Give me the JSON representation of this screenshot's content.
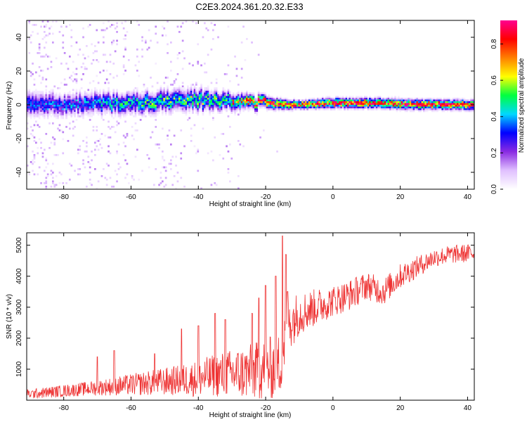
{
  "title": "C2E3.2024.361.20.32.E33",
  "chart_data": [
    {
      "type": "heatmap",
      "xlabel": "Height of straight line (km)",
      "ylabel": "Frequency (Hz)",
      "xlim": [
        -91,
        42
      ],
      "ylim": [
        -50,
        50
      ],
      "xticks": [
        -80,
        -60,
        -40,
        -20,
        0,
        20,
        40
      ],
      "yticks": [
        -40,
        -20,
        0,
        20,
        40
      ],
      "colorbar": {
        "label": "Normalized spectral amplitude",
        "range": [
          0.0,
          0.93
        ],
        "ticks": [
          0.0,
          0.2,
          0.4,
          0.6,
          0.8
        ],
        "colors": [
          "#ffffff",
          "#e0c0ff",
          "#8a2be2",
          "#0000ff",
          "#00d8ff",
          "#00ff40",
          "#ffff00",
          "#ff8000",
          "#ff0000",
          "#ff0090"
        ]
      },
      "band_profile": [
        {
          "x": -90,
          "center": 0,
          "halfwidth": 6,
          "peak": 0.35
        },
        {
          "x": -80,
          "center": 0,
          "halfwidth": 5,
          "peak": 0.35
        },
        {
          "x": -70,
          "center": 1,
          "halfwidth": 5,
          "peak": 0.4
        },
        {
          "x": -60,
          "center": 1,
          "halfwidth": 5,
          "peak": 0.45
        },
        {
          "x": -50,
          "center": 2,
          "halfwidth": 5,
          "peak": 0.5
        },
        {
          "x": -40,
          "center": 3,
          "halfwidth": 5,
          "peak": 0.5
        },
        {
          "x": -30,
          "center": 2,
          "halfwidth": 4,
          "peak": 0.55
        },
        {
          "x": -20,
          "center": 1,
          "halfwidth": 3,
          "peak": 0.75
        },
        {
          "x": -10,
          "center": 0,
          "halfwidth": 2,
          "peak": 0.8
        },
        {
          "x": 0,
          "center": 1,
          "halfwidth": 2.5,
          "peak": 0.8
        },
        {
          "x": 10,
          "center": 1,
          "halfwidth": 2.5,
          "peak": 0.8
        },
        {
          "x": 20,
          "center": 0.5,
          "halfwidth": 2.5,
          "peak": 0.8
        },
        {
          "x": 30,
          "center": 0,
          "halfwidth": 2.5,
          "peak": 0.8
        },
        {
          "x": 42,
          "center": 0,
          "halfwidth": 2.5,
          "peak": 0.75
        }
      ]
    },
    {
      "type": "line",
      "xlabel": "Height of straight line (km)",
      "ylabel": "SNR (10 * v/v)",
      "xlim": [
        -91,
        42
      ],
      "ylim": [
        0,
        5400
      ],
      "xticks": [
        -80,
        -60,
        -40,
        -20,
        0,
        20,
        40
      ],
      "yticks": [
        1000,
        2000,
        3000,
        4000,
        5000
      ],
      "color": "#ee3333",
      "x": [
        -90,
        -85,
        -80,
        -75,
        -70,
        -65,
        -60,
        -55,
        -50,
        -45,
        -40,
        -35,
        -30,
        -25,
        -20,
        -16,
        -15,
        -13,
        -10,
        -5,
        0,
        5,
        10,
        15,
        20,
        25,
        30,
        35,
        42
      ],
      "y": [
        200,
        250,
        300,
        350,
        400,
        450,
        500,
        550,
        600,
        650,
        700,
        800,
        850,
        900,
        1000,
        1100,
        5300,
        2500,
        2800,
        3000,
        3200,
        3400,
        3700,
        3500,
        4000,
        4300,
        4600,
        4700,
        4750
      ],
      "noise_amp": [
        150,
        180,
        200,
        220,
        250,
        300,
        350,
        400,
        450,
        500,
        600,
        700,
        800,
        900,
        1000,
        1100,
        0,
        900,
        700,
        600,
        500,
        500,
        450,
        450,
        400,
        350,
        300,
        300,
        300
      ],
      "spikes": [
        {
          "x": -70,
          "y": 1400
        },
        {
          "x": -65,
          "y": 1600
        },
        {
          "x": -53,
          "y": 1500
        },
        {
          "x": -45,
          "y": 2300
        },
        {
          "x": -40,
          "y": 2400
        },
        {
          "x": -35,
          "y": 2800
        },
        {
          "x": -32,
          "y": 2600
        },
        {
          "x": -24,
          "y": 2800
        },
        {
          "x": -22,
          "y": 3300
        },
        {
          "x": -20,
          "y": 3700
        },
        {
          "x": -17,
          "y": 4000
        },
        {
          "x": -15,
          "y": 5300
        },
        {
          "x": -14,
          "y": 4700
        },
        {
          "x": -13.5,
          "y": 3500
        }
      ]
    }
  ]
}
